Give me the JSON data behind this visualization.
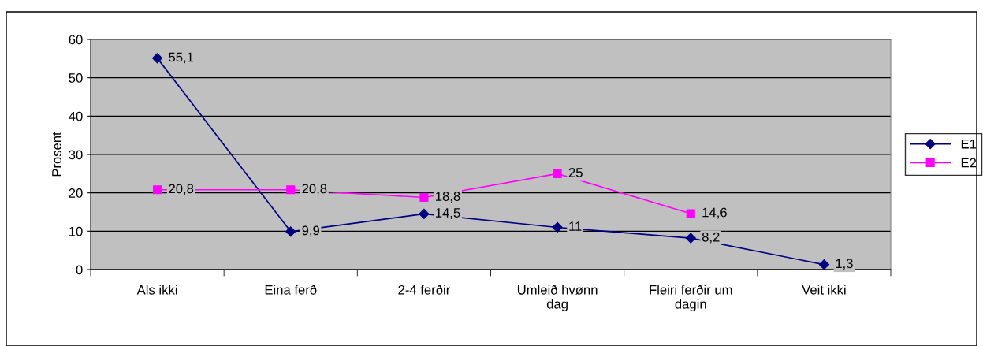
{
  "chart_data": {
    "type": "line",
    "ylabel": "Prosent",
    "categories": [
      "Als ikki",
      "Eina ferð",
      "2-4 ferðir",
      "Umleið hvønn\ndag",
      "Fleiri ferðir um\ndagin",
      "Veit ikki"
    ],
    "series": [
      {
        "name": "E1",
        "color": "#000080",
        "marker": "diamond",
        "values": [
          55.1,
          9.9,
          14.5,
          11,
          8.2,
          1.3
        ],
        "value_labels": [
          "55,1",
          "9,9",
          "14,5",
          "11",
          "8,2",
          "1,3"
        ]
      },
      {
        "name": "E2",
        "color": "#ff00ff",
        "marker": "square",
        "values": [
          20.8,
          20.8,
          18.8,
          25,
          14.6,
          null
        ],
        "value_labels": [
          "20,8",
          "20,8",
          "18,8",
          "25",
          "14,6",
          null
        ]
      }
    ],
    "ylim": [
      0,
      60
    ],
    "yticks": [
      0,
      10,
      20,
      30,
      40,
      50,
      60
    ],
    "grid": "y",
    "legend": "right",
    "line_style": "solid"
  }
}
